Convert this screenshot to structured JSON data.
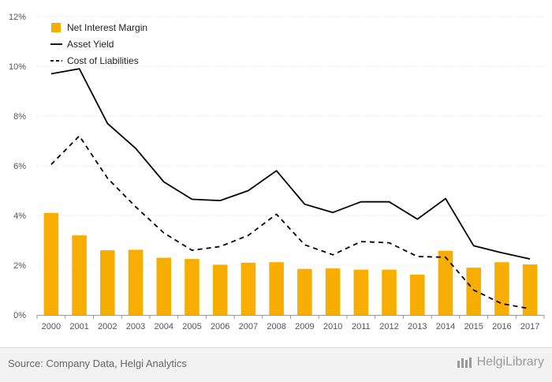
{
  "chart_data": {
    "type": "bar",
    "title": "",
    "xlabel": "",
    "ylabel": "",
    "categories": [
      "2000",
      "2001",
      "2002",
      "2003",
      "2004",
      "2005",
      "2006",
      "2007",
      "2008",
      "2009",
      "2010",
      "2011",
      "2012",
      "2013",
      "2014",
      "2015",
      "2016",
      "2017"
    ],
    "ylim": [
      0,
      12
    ],
    "yticks": [
      "0%",
      "2%",
      "4%",
      "6%",
      "8%",
      "10%",
      "12%"
    ],
    "grid": true,
    "legend_position": "top-left",
    "series": [
      {
        "name": "Net Interest Margin",
        "type": "bar",
        "color": "#F7AE00",
        "values": [
          4.1,
          3.2,
          2.6,
          2.62,
          2.3,
          2.25,
          2.02,
          2.1,
          2.12,
          1.85,
          1.87,
          1.82,
          1.82,
          1.62,
          2.58,
          1.9,
          2.12,
          2.03
        ]
      },
      {
        "name": "Asset Yield",
        "type": "line",
        "style": "solid",
        "color": "#000000",
        "values": [
          9.7,
          9.9,
          7.7,
          6.7,
          5.35,
          4.65,
          4.6,
          5.0,
          5.8,
          4.45,
          4.12,
          4.55,
          4.55,
          3.85,
          4.68,
          2.78,
          2.5,
          2.25
        ]
      },
      {
        "name": "Cost of Liabilities",
        "type": "line",
        "style": "dashed",
        "color": "#000000",
        "values": [
          6.05,
          7.2,
          5.5,
          4.35,
          3.3,
          2.6,
          2.75,
          3.2,
          4.05,
          2.82,
          2.42,
          2.95,
          2.9,
          2.35,
          2.32,
          1.0,
          0.45,
          0.25
        ]
      }
    ]
  },
  "footer": {
    "source": "Source: Company Data, Helgi Analytics",
    "brand": "HelgiLibrary"
  }
}
